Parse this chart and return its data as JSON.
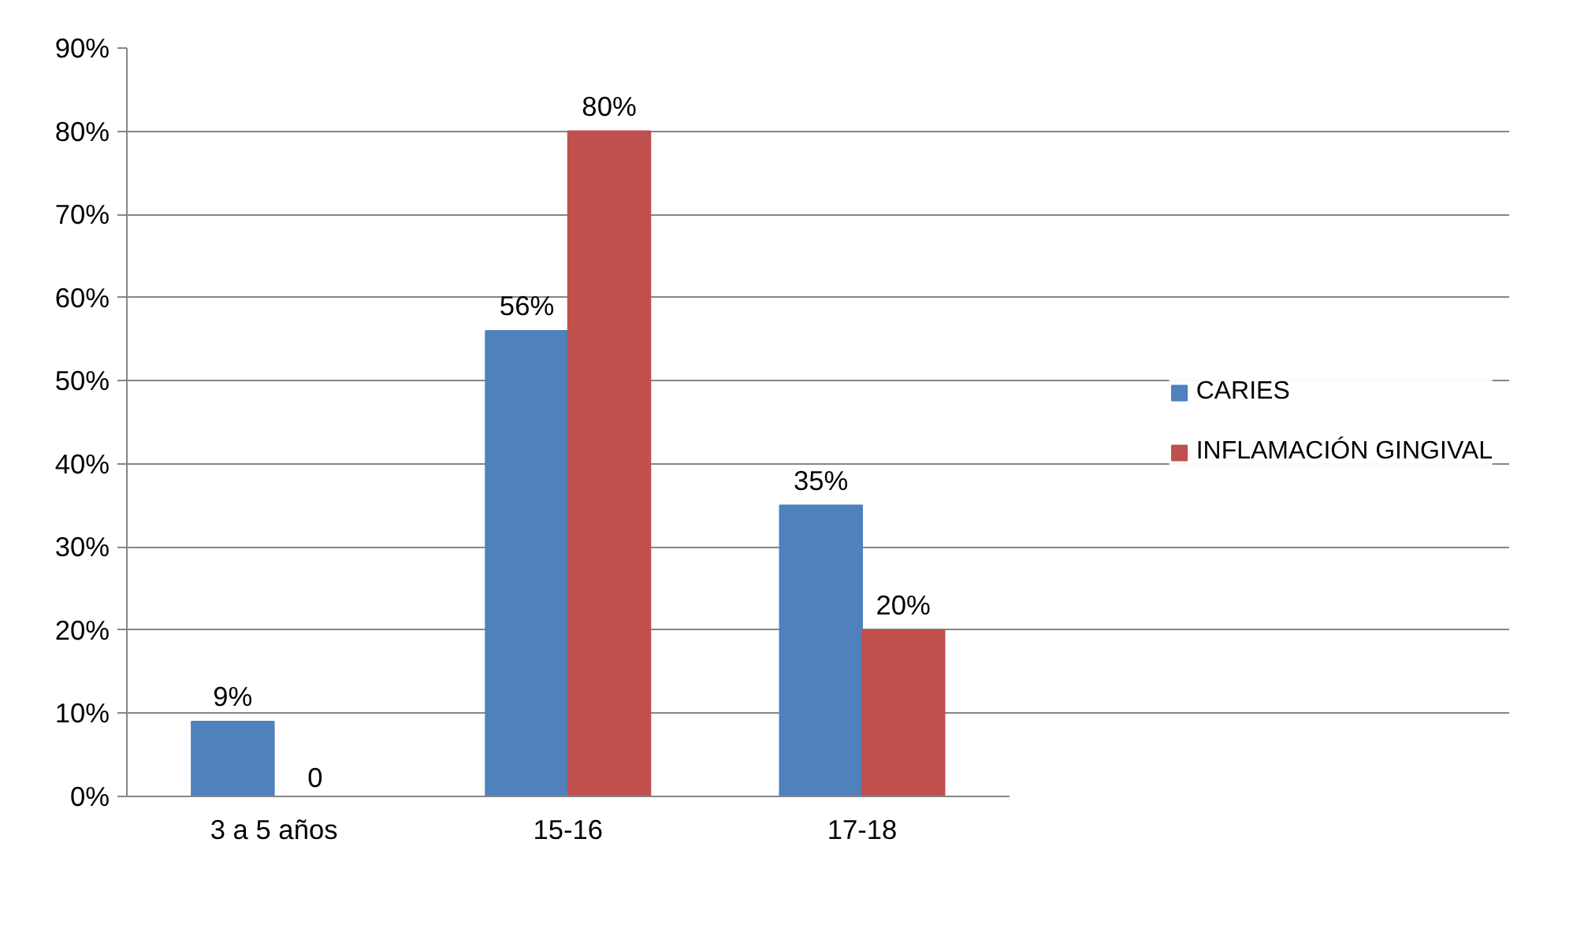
{
  "chart_data": {
    "type": "bar",
    "categories": [
      "3 a 5 años",
      "15-16",
      "17-18"
    ],
    "series": [
      {
        "name": "CARIES",
        "color": "#4f81bd",
        "values": [
          9,
          56,
          35
        ],
        "value_labels": [
          "9%",
          "56%",
          "35%"
        ]
      },
      {
        "name": "INFLAMACIÓN GINGIVAL",
        "color": "#c0504d",
        "values": [
          0,
          80,
          20
        ],
        "value_labels": [
          "0",
          "80%",
          "20%"
        ]
      }
    ],
    "ylim": [
      0,
      90
    ],
    "yticks": [
      {
        "value": 0,
        "label": "0%"
      },
      {
        "value": 10,
        "label": "10%"
      },
      {
        "value": 20,
        "label": "20%"
      },
      {
        "value": 30,
        "label": "30%"
      },
      {
        "value": 40,
        "label": "40%"
      },
      {
        "value": 50,
        "label": "50%"
      },
      {
        "value": 60,
        "label": "60%"
      },
      {
        "value": 70,
        "label": "70%"
      },
      {
        "value": 80,
        "label": "80%"
      },
      {
        "value": 90,
        "label": "90%"
      }
    ],
    "grid": "y",
    "legend": "right"
  }
}
